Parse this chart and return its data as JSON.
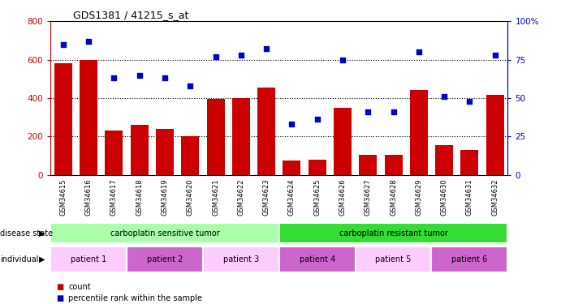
{
  "title": "GDS1381 / 41215_s_at",
  "samples": [
    "GSM34615",
    "GSM34616",
    "GSM34617",
    "GSM34618",
    "GSM34619",
    "GSM34620",
    "GSM34621",
    "GSM34622",
    "GSM34623",
    "GSM34624",
    "GSM34625",
    "GSM34626",
    "GSM34627",
    "GSM34628",
    "GSM34629",
    "GSM34630",
    "GSM34631",
    "GSM34632"
  ],
  "counts": [
    580,
    600,
    230,
    260,
    240,
    200,
    395,
    400,
    455,
    75,
    80,
    350,
    105,
    105,
    440,
    155,
    130,
    415
  ],
  "percentiles": [
    85,
    87,
    63,
    65,
    63,
    58,
    77,
    78,
    82,
    33,
    36,
    75,
    41,
    41,
    80,
    51,
    48,
    78
  ],
  "bar_color": "#cc0000",
  "dot_color": "#0000cc",
  "ylim_left": [
    0,
    800
  ],
  "ylim_right": [
    0,
    100
  ],
  "yticks_left": [
    0,
    200,
    400,
    600,
    800
  ],
  "yticks_right": [
    0,
    25,
    50,
    75,
    100
  ],
  "yticklabels_right": [
    "0",
    "25",
    "50",
    "75",
    "100%"
  ],
  "grid_lines": [
    200,
    400,
    600
  ],
  "disease_state_groups": [
    {
      "label": "carboplatin sensitive tumor",
      "start": 0,
      "end": 9,
      "color": "#aaffaa"
    },
    {
      "label": "carboplatin resistant tumor",
      "start": 9,
      "end": 18,
      "color": "#33dd33"
    }
  ],
  "patient_groups": [
    {
      "label": "patient 1",
      "start": 0,
      "end": 3,
      "color": "#ffccff"
    },
    {
      "label": "patient 2",
      "start": 3,
      "end": 6,
      "color": "#cc66cc"
    },
    {
      "label": "patient 3",
      "start": 6,
      "end": 9,
      "color": "#ffccff"
    },
    {
      "label": "patient 4",
      "start": 9,
      "end": 12,
      "color": "#cc66cc"
    },
    {
      "label": "patient 5",
      "start": 12,
      "end": 15,
      "color": "#ffccff"
    },
    {
      "label": "patient 6",
      "start": 15,
      "end": 18,
      "color": "#cc66cc"
    }
  ],
  "legend_count_color": "#cc0000",
  "legend_percentile_color": "#0000cc",
  "bg_color": "#ffffff",
  "tick_label_color_left": "#cc0000",
  "tick_label_color_right": "#0000cc",
  "label_row1": "disease state",
  "label_row2": "individual",
  "xticklabel_bg": "#cccccc"
}
